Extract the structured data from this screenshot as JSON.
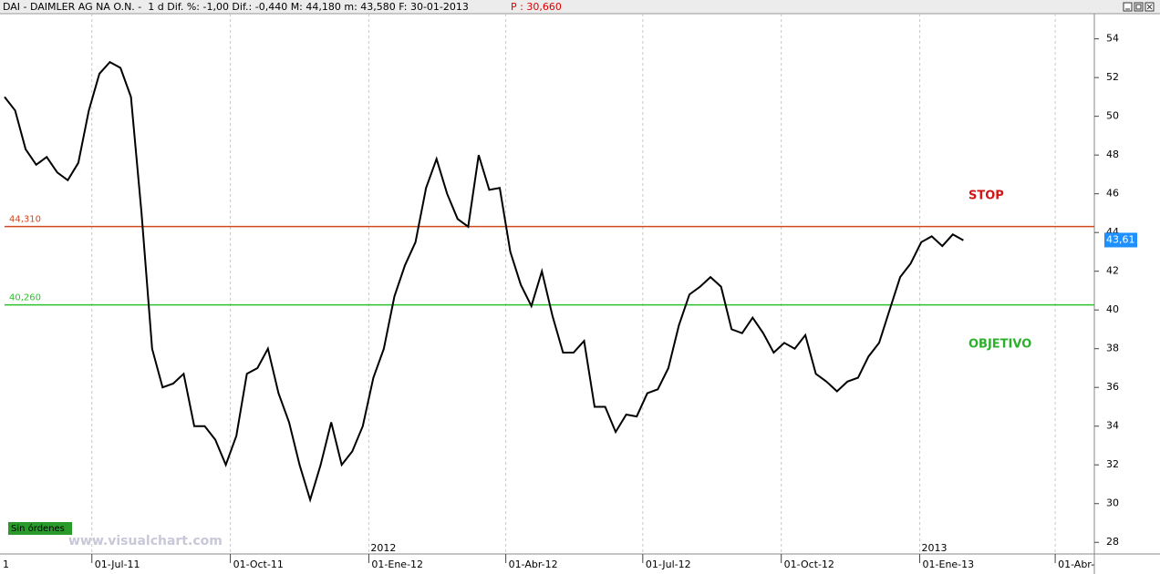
{
  "chart_data": {
    "type": "line",
    "header": "DAI - DAIMLER AG NA O.N. -  1 d Dif. %: -1,00 Dif.: -0,440 M: 44,180 m: 43,580 F: 30-01-2013",
    "header_price": "P : 30,660",
    "corner_label": "1",
    "color": "#000000",
    "x": [
      "2011-05-04",
      "2011-05-11",
      "2011-05-18",
      "2011-05-25",
      "2011-06-01",
      "2011-06-08",
      "2011-06-15",
      "2011-06-22",
      "2011-06-29",
      "2011-07-06",
      "2011-07-13",
      "2011-07-20",
      "2011-07-27",
      "2011-08-03",
      "2011-08-10",
      "2011-08-17",
      "2011-08-24",
      "2011-08-31",
      "2011-09-07",
      "2011-09-14",
      "2011-09-21",
      "2011-09-28",
      "2011-10-05",
      "2011-10-12",
      "2011-10-19",
      "2011-10-26",
      "2011-11-02",
      "2011-11-09",
      "2011-11-16",
      "2011-11-23",
      "2011-11-30",
      "2011-12-07",
      "2011-12-14",
      "2011-12-21",
      "2011-12-28",
      "2012-01-04",
      "2012-01-11",
      "2012-01-18",
      "2012-01-25",
      "2012-02-01",
      "2012-02-08",
      "2012-02-15",
      "2012-02-22",
      "2012-02-29",
      "2012-03-07",
      "2012-03-14",
      "2012-03-21",
      "2012-03-28",
      "2012-04-04",
      "2012-04-11",
      "2012-04-18",
      "2012-04-25",
      "2012-05-02",
      "2012-05-09",
      "2012-05-16",
      "2012-05-23",
      "2012-05-30",
      "2012-06-06",
      "2012-06-13",
      "2012-06-20",
      "2012-06-27",
      "2012-07-04",
      "2012-07-11",
      "2012-07-18",
      "2012-07-25",
      "2012-08-01",
      "2012-08-08",
      "2012-08-15",
      "2012-08-22",
      "2012-08-29",
      "2012-09-05",
      "2012-09-12",
      "2012-09-19",
      "2012-09-26",
      "2012-10-03",
      "2012-10-10",
      "2012-10-17",
      "2012-10-24",
      "2012-10-31",
      "2012-11-07",
      "2012-11-14",
      "2012-11-21",
      "2012-11-28",
      "2012-12-05",
      "2012-12-12",
      "2012-12-19",
      "2012-12-26",
      "2013-01-02",
      "2013-01-09",
      "2013-01-16",
      "2013-01-23",
      "2013-01-30"
    ],
    "values": [
      51,
      50.3,
      48.3,
      47.5,
      47.9,
      47.1,
      46.7,
      47.6,
      50.3,
      52.2,
      52.8,
      52.5,
      51,
      45,
      38,
      36,
      36.2,
      36.7,
      34,
      34,
      33.3,
      32,
      33.5,
      36.7,
      37,
      38,
      35.7,
      34.2,
      32,
      30.2,
      32,
      34.2,
      32,
      32.7,
      34,
      36.5,
      38,
      40.7,
      42.3,
      43.5,
      46.3,
      47.8,
      46,
      44.7,
      44.3,
      48,
      46.2,
      46.3,
      43,
      41.3,
      40.2,
      42,
      39.7,
      37.8,
      37.8,
      38.4,
      35,
      35,
      33.7,
      34.6,
      34.5,
      35.7,
      35.9,
      37,
      39.2,
      40.8,
      41.2,
      41.7,
      41.2,
      39,
      38.8,
      39.6,
      38.8,
      37.8,
      38.3,
      38,
      38.7,
      36.7,
      36.3,
      35.8,
      36.3,
      36.5,
      37.6,
      38.3,
      40,
      41.7,
      42.4,
      43.5,
      43.8,
      43.3,
      43.9,
      43.6
    ],
    "xlim": [
      "2011-05-04",
      "2013-04-27"
    ],
    "xticks": [
      {
        "value": "2011-07-01",
        "label": "01-Jul-11"
      },
      {
        "value": "2011-10-01",
        "label": "01-Oct-11"
      },
      {
        "value": "2012-01-01",
        "label": "01-Ene-12"
      },
      {
        "value": "2012-04-01",
        "label": "01-Abr-12"
      },
      {
        "value": "2012-07-01",
        "label": "01-Jul-12"
      },
      {
        "value": "2012-10-01",
        "label": "01-Oct-12"
      },
      {
        "value": "2013-01-01",
        "label": "01-Ene-13"
      },
      {
        "value": "2013-04-01",
        "label": "01-Abr-"
      }
    ],
    "year_marks": [
      {
        "value": "2012-01-01",
        "label": "2012"
      },
      {
        "value": "2013-01-01",
        "label": "2013"
      }
    ],
    "ylim": [
      27.4,
      55.3
    ],
    "yticks": [
      28,
      30,
      32,
      34,
      36,
      38,
      40,
      42,
      44,
      46,
      48,
      50,
      52,
      54
    ],
    "grid": true,
    "hlines": [
      {
        "value": 44.31,
        "label": "44,310",
        "color": "#d2481e"
      },
      {
        "value": 40.26,
        "label": "40,260",
        "color": "#2cc02c"
      }
    ],
    "annotations": [
      {
        "text": "STOP",
        "color": "#d21414"
      },
      {
        "text": "OBJETIVO",
        "color": "#2cb02c"
      }
    ],
    "last_price": {
      "value": 43.61,
      "label": "43,61"
    },
    "status": "Sin órdenes",
    "watermark": "www.visualchart.com"
  }
}
